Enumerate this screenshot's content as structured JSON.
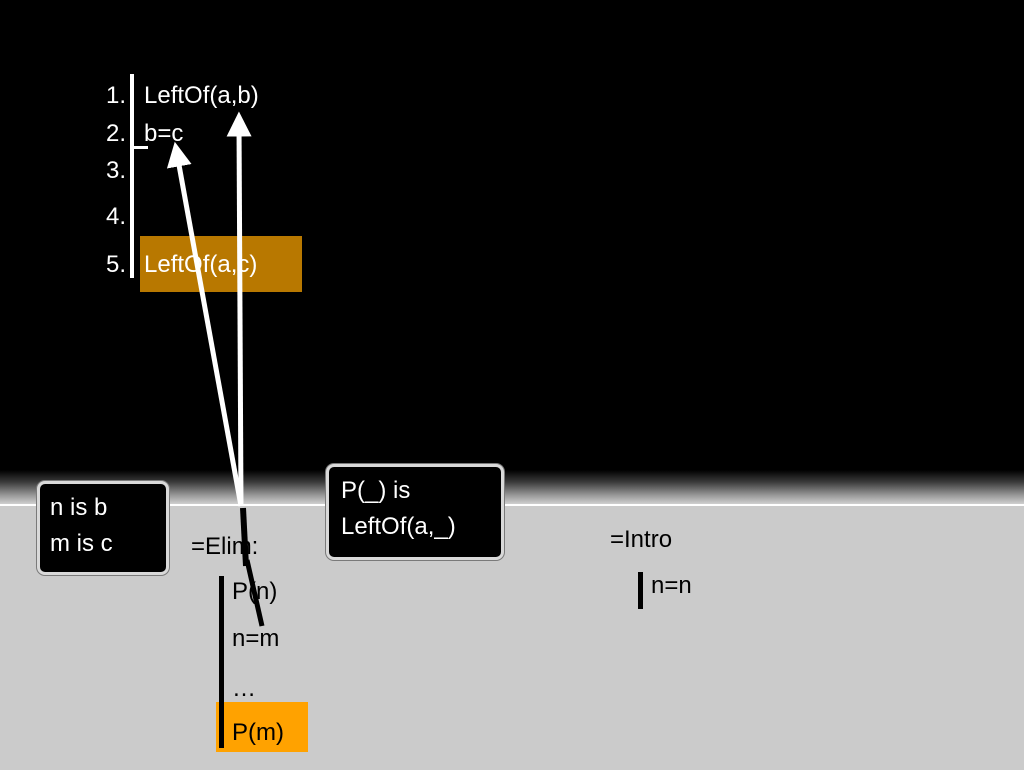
{
  "proof": {
    "lines": [
      {
        "num": "1.",
        "formula": "LeftOf(a,b)"
      },
      {
        "num": "2.",
        "formula": "b=c"
      },
      {
        "num": "3.",
        "formula": ""
      },
      {
        "num": "4.",
        "formula": ""
      },
      {
        "num": "5.",
        "formula": "LeftOf(a,c)"
      }
    ]
  },
  "bubbles": {
    "substitution_n": "n is b",
    "substitution_m": "m is c",
    "predicate_line1": "P(_) is",
    "predicate_line2": "LeftOf(a,_)"
  },
  "elim_rule": {
    "title": "=Elim:",
    "lines": [
      "P(n)",
      "n=m",
      "…",
      "P(m)"
    ]
  },
  "intro_rule": {
    "title": "=Intro",
    "line": "n=n"
  },
  "colors": {
    "background_top": "#000000",
    "background_bottom": "#cbcbcb",
    "highlight_proof": "#b87800",
    "highlight_rule": "#ffa200",
    "text_light": "#ffffff",
    "text_dark": "#000000"
  }
}
